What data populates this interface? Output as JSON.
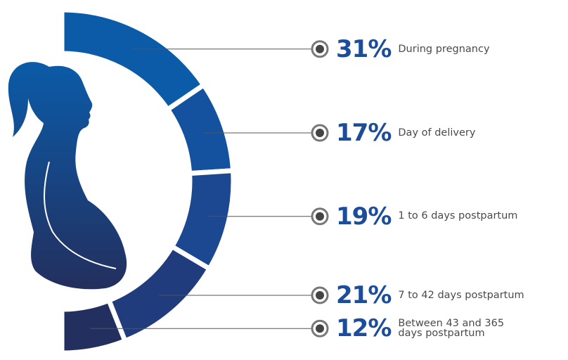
{
  "chart_data": {
    "type": "half-donut",
    "categories": [
      "During pregnancy",
      "Day of delivery",
      "1 to 6 days postpartum",
      "7 to 42 days postpartum",
      "Between 43 and 365\ndays postpartum"
    ],
    "values": [
      31,
      17,
      19,
      21,
      12
    ],
    "value_labels": [
      "31%",
      "17%",
      "19%",
      "21%",
      "12%"
    ],
    "colors": [
      "#0b5ba8",
      "#1452a0",
      "#1b4891",
      "#203c7c",
      "#232f5e"
    ]
  }
}
